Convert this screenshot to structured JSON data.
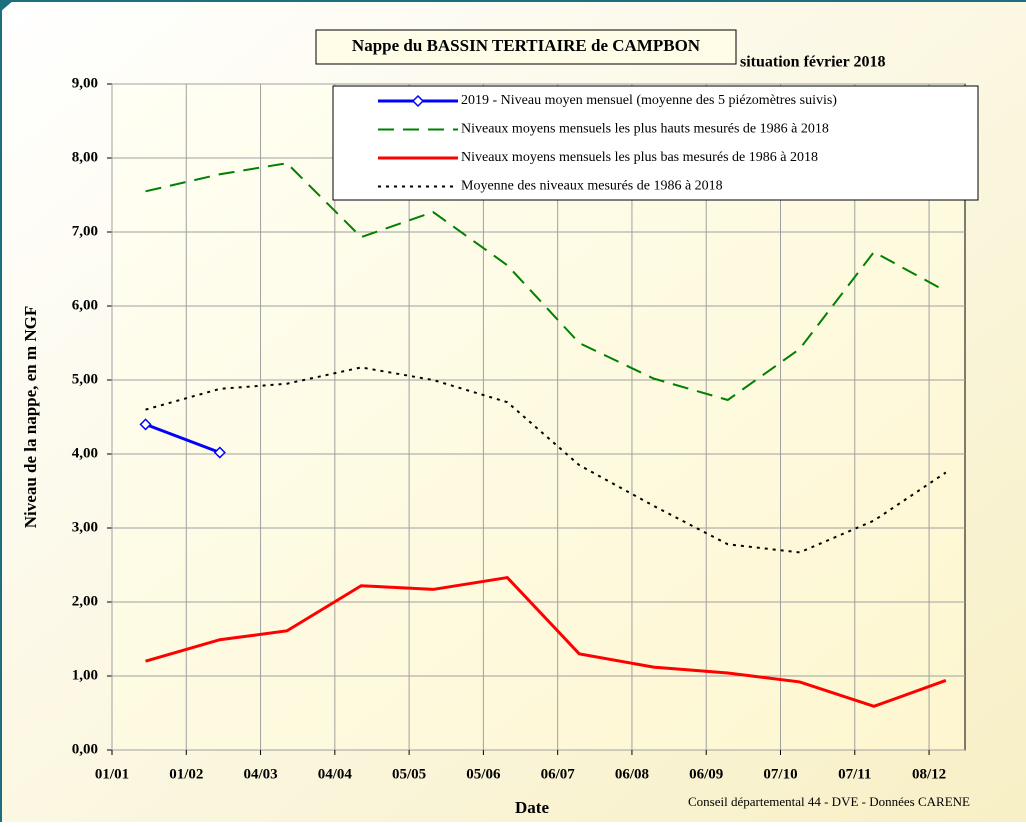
{
  "chart_data": {
    "type": "line",
    "title": "Nappe du BASSIN TERTIAIRE de CAMPBON",
    "subtitle": "situation février 2018",
    "x_label": "Date",
    "y_label": "Niveau de la nappe, en m NGF",
    "footer": "Conseil départemental 44 - DVE -    Données CARENE",
    "x": [
      15,
      46,
      74,
      105,
      135,
      166,
      196,
      227,
      258,
      288,
      319,
      349
    ],
    "xlim": [
      1,
      357
    ],
    "xticks": [
      {
        "value": 1,
        "label": "01/01"
      },
      {
        "value": 32,
        "label": "01/02"
      },
      {
        "value": 63,
        "label": "04/03"
      },
      {
        "value": 94,
        "label": "04/04"
      },
      {
        "value": 125,
        "label": "05/05"
      },
      {
        "value": 156,
        "label": "05/06"
      },
      {
        "value": 187,
        "label": "06/07"
      },
      {
        "value": 218,
        "label": "06/08"
      },
      {
        "value": 249,
        "label": "06/09"
      },
      {
        "value": 280,
        "label": "07/10"
      },
      {
        "value": 311,
        "label": "07/11"
      },
      {
        "value": 342,
        "label": "08/12"
      }
    ],
    "ylim": [
      0,
      9
    ],
    "yticks": [
      {
        "value": 0,
        "label": "0,00"
      },
      {
        "value": 1,
        "label": "1,00"
      },
      {
        "value": 2,
        "label": "2,00"
      },
      {
        "value": 3,
        "label": "3,00"
      },
      {
        "value": 4,
        "label": "4,00"
      },
      {
        "value": 5,
        "label": "5,00"
      },
      {
        "value": 6,
        "label": "6,00"
      },
      {
        "value": 7,
        "label": "7,00"
      },
      {
        "value": 8,
        "label": "8,00"
      },
      {
        "value": 9,
        "label": "9,00"
      }
    ],
    "grid": true,
    "legend_position": "top-right",
    "series": [
      {
        "name": "2019 - Niveau moyen mensuel (moyenne des 5 piézomètres suivis)",
        "color": "#0000ff",
        "dash": "solid",
        "marker": "diamond",
        "values": [
          4.4,
          4.02,
          null,
          null,
          null,
          null,
          null,
          null,
          null,
          null,
          null,
          null
        ]
      },
      {
        "name": "Niveaux moyens mensuels les plus hauts mesurés de 1986 à 2018",
        "color": "#008000",
        "dash": "dashed",
        "values": [
          7.55,
          7.78,
          7.93,
          6.93,
          7.27,
          6.55,
          5.5,
          5.02,
          4.73,
          5.42,
          6.73,
          6.2
        ]
      },
      {
        "name": "Niveaux moyens mensuels les plus bas mesurés de 1986 à 2018",
        "color": "#ff0000",
        "dash": "solid",
        "values": [
          1.2,
          1.49,
          1.61,
          2.22,
          2.17,
          2.33,
          1.3,
          1.12,
          1.04,
          0.92,
          0.59,
          0.94
        ]
      },
      {
        "name": "Moyenne des niveaux mesurés de 1986 à 2018",
        "color": "#000000",
        "dash": "dotted",
        "values": [
          4.6,
          4.88,
          4.95,
          5.17,
          5.0,
          4.7,
          3.85,
          3.3,
          2.78,
          2.67,
          3.1,
          3.75
        ]
      }
    ]
  }
}
